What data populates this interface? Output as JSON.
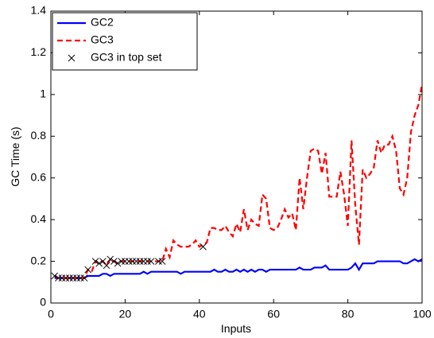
{
  "chart_data": {
    "type": "line",
    "x_label": "Inputs",
    "y_label": "GC Time (s)",
    "x": [
      1,
      2,
      3,
      4,
      5,
      6,
      7,
      8,
      9,
      10,
      11,
      12,
      13,
      14,
      15,
      16,
      17,
      18,
      19,
      20,
      21,
      22,
      23,
      24,
      25,
      26,
      27,
      28,
      29,
      30,
      31,
      32,
      33,
      34,
      35,
      36,
      37,
      38,
      39,
      40,
      41,
      42,
      43,
      44,
      45,
      46,
      47,
      48,
      49,
      50,
      51,
      52,
      53,
      54,
      55,
      56,
      57,
      58,
      59,
      60,
      61,
      62,
      63,
      64,
      65,
      66,
      67,
      68,
      69,
      70,
      71,
      72,
      73,
      74,
      75,
      76,
      77,
      78,
      79,
      80,
      81,
      82,
      83,
      84,
      85,
      86,
      87,
      88,
      89,
      90,
      91,
      92,
      93,
      94,
      95,
      96,
      97,
      98,
      99,
      100
    ],
    "series": [
      {
        "name": "GC2",
        "color": "#0000ff",
        "dash": false,
        "values": [
          0.12,
          0.12,
          0.12,
          0.12,
          0.12,
          0.12,
          0.12,
          0.12,
          0.12,
          0.13,
          0.13,
          0.13,
          0.13,
          0.14,
          0.14,
          0.13,
          0.14,
          0.14,
          0.14,
          0.14,
          0.14,
          0.14,
          0.14,
          0.14,
          0.15,
          0.14,
          0.15,
          0.15,
          0.15,
          0.15,
          0.15,
          0.15,
          0.15,
          0.15,
          0.14,
          0.15,
          0.15,
          0.15,
          0.15,
          0.15,
          0.15,
          0.15,
          0.15,
          0.16,
          0.15,
          0.15,
          0.16,
          0.15,
          0.15,
          0.16,
          0.15,
          0.16,
          0.15,
          0.16,
          0.15,
          0.16,
          0.16,
          0.15,
          0.16,
          0.16,
          0.16,
          0.16,
          0.16,
          0.16,
          0.16,
          0.16,
          0.17,
          0.16,
          0.16,
          0.16,
          0.17,
          0.17,
          0.17,
          0.18,
          0.16,
          0.16,
          0.16,
          0.16,
          0.16,
          0.16,
          0.17,
          0.19,
          0.16,
          0.19,
          0.19,
          0.19,
          0.19,
          0.2,
          0.2,
          0.2,
          0.2,
          0.2,
          0.2,
          0.2,
          0.19,
          0.19,
          0.2,
          0.21,
          0.2,
          0.21
        ]
      },
      {
        "name": "GC3",
        "color": "#ff0000",
        "dash": true,
        "values": [
          0.13,
          0.12,
          0.12,
          0.12,
          0.12,
          0.12,
          0.12,
          0.12,
          0.12,
          0.16,
          0.15,
          0.2,
          0.19,
          0.2,
          0.18,
          0.21,
          0.2,
          0.19,
          0.2,
          0.2,
          0.2,
          0.2,
          0.2,
          0.2,
          0.2,
          0.2,
          0.2,
          0.2,
          0.2,
          0.2,
          0.26,
          0.22,
          0.3,
          0.28,
          0.27,
          0.27,
          0.27,
          0.28,
          0.3,
          0.27,
          0.28,
          0.29,
          0.36,
          0.36,
          0.35,
          0.35,
          0.37,
          0.34,
          0.32,
          0.38,
          0.34,
          0.45,
          0.35,
          0.4,
          0.38,
          0.37,
          0.52,
          0.5,
          0.36,
          0.35,
          0.36,
          0.4,
          0.45,
          0.41,
          0.43,
          0.35,
          0.6,
          0.45,
          0.6,
          0.73,
          0.74,
          0.73,
          0.62,
          0.72,
          0.51,
          0.51,
          0.51,
          0.63,
          0.52,
          0.37,
          0.78,
          0.47,
          0.28,
          0.64,
          0.6,
          0.62,
          0.65,
          0.78,
          0.72,
          0.76,
          0.76,
          0.8,
          0.73,
          0.55,
          0.52,
          0.6,
          0.82,
          0.9,
          0.95,
          1.05
        ]
      },
      {
        "name": "GC3 in top set",
        "color": "#000000",
        "marker": "x",
        "x": [
          1,
          2,
          3,
          4,
          5,
          6,
          7,
          8,
          9,
          10,
          12,
          13,
          14,
          15,
          16,
          17,
          18,
          19,
          20,
          21,
          22,
          23,
          24,
          25,
          26,
          27,
          29,
          30,
          41
        ],
        "values": [
          0.13,
          0.12,
          0.12,
          0.12,
          0.12,
          0.12,
          0.12,
          0.12,
          0.12,
          0.16,
          0.2,
          0.19,
          0.2,
          0.18,
          0.21,
          0.2,
          0.19,
          0.2,
          0.2,
          0.2,
          0.2,
          0.2,
          0.2,
          0.2,
          0.2,
          0.2,
          0.2,
          0.2,
          0.27
        ]
      }
    ],
    "xlim": [
      0,
      100
    ],
    "xticks": [
      0,
      20,
      40,
      60,
      80,
      100
    ],
    "ylim": [
      0,
      1.4
    ],
    "yticks": [
      0,
      0.2,
      0.4,
      0.6,
      0.8,
      1,
      1.2,
      1.4
    ],
    "legend": "upper-left"
  }
}
